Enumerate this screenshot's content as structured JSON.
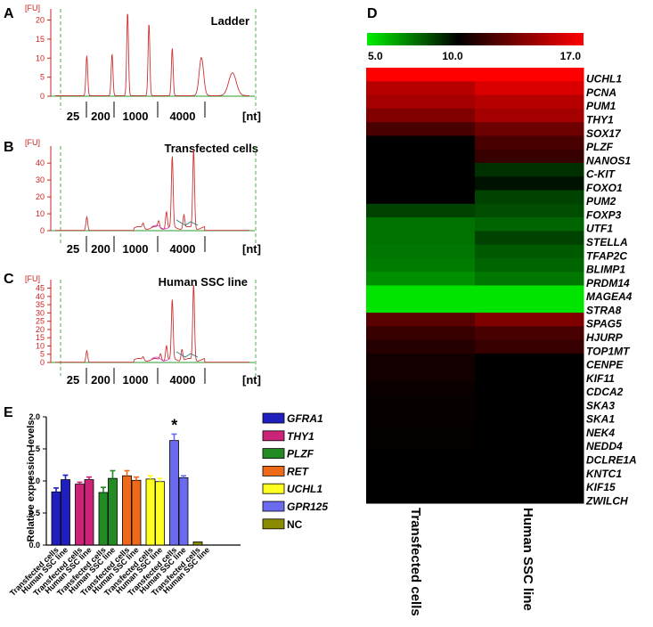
{
  "panels": {
    "a_letter": "A",
    "b_letter": "B",
    "c_letter": "C",
    "d_letter": "D",
    "e_letter": "E"
  },
  "chart_data": [
    {
      "type": "line",
      "panel": "A",
      "title": "Ladder",
      "unit_y": "[FU]",
      "unit_x": "[nt]",
      "y_ticks": [
        "0",
        "5",
        "10",
        "15",
        "20"
      ],
      "ylim": [
        0,
        22
      ],
      "x_tick_labels": [
        "25",
        "200",
        "1000",
        "4000"
      ],
      "peaks": [
        {
          "x": 0.08,
          "height": 10.5
        },
        {
          "x": 0.21,
          "height": 11.0
        },
        {
          "x": 0.29,
          "height": 22.0
        },
        {
          "x": 0.4,
          "height": 19.0
        },
        {
          "x": 0.52,
          "height": 12.5
        },
        {
          "x": 0.67,
          "height": 10.0
        },
        {
          "x": 0.83,
          "height": 6.0
        }
      ],
      "color": "#cc3333"
    },
    {
      "type": "line",
      "panel": "B",
      "title": "Transfected cells",
      "unit_y": "[FU]",
      "unit_x": "[nt]",
      "y_ticks": [
        "0",
        "10",
        "20",
        "30",
        "40"
      ],
      "ylim": [
        0,
        48
      ],
      "x_tick_labels": [
        "25",
        "200",
        "1000",
        "4000"
      ],
      "peaks": [
        {
          "x": 0.08,
          "height": 8.0
        },
        {
          "x": 0.37,
          "height": 3.0
        },
        {
          "x": 0.45,
          "height": 4.0
        },
        {
          "x": 0.49,
          "height": 10.0
        },
        {
          "x": 0.52,
          "height": 42.0
        },
        {
          "x": 0.58,
          "height": 8.0
        },
        {
          "x": 0.63,
          "height": 47.0
        }
      ],
      "color": "#cc3333"
    },
    {
      "type": "line",
      "panel": "C",
      "title": "Human SSC line",
      "unit_y": "[FU]",
      "unit_x": "[nt]",
      "y_ticks": [
        "0",
        "5",
        "10",
        "15",
        "20",
        "25",
        "30",
        "35",
        "40",
        "45"
      ],
      "ylim": [
        0,
        48
      ],
      "x_tick_labels": [
        "25",
        "200",
        "1000",
        "4000"
      ],
      "peaks": [
        {
          "x": 0.08,
          "height": 7.0
        },
        {
          "x": 0.37,
          "height": 2.0
        },
        {
          "x": 0.46,
          "height": 4.0
        },
        {
          "x": 0.49,
          "height": 9.0
        },
        {
          "x": 0.52,
          "height": 36.0
        },
        {
          "x": 0.57,
          "height": 7.0
        },
        {
          "x": 0.63,
          "height": 46.0
        }
      ],
      "color": "#cc3333"
    },
    {
      "type": "heatmap",
      "panel": "D",
      "colorbar": {
        "min_label": "5.0",
        "mid_label": "10.0",
        "max_label": "17.0",
        "min": 5.0,
        "mid": 10.0,
        "max": 17.0,
        "low_color": "#00ee00",
        "mid_color": "#000000",
        "high_color": "#ff0000"
      },
      "columns": [
        "Transfected cells",
        "Human SSC line"
      ],
      "rows": [
        "UCHL1",
        "PCNA",
        "PUM1",
        "THY1",
        "SOX17",
        "PLZF",
        "NANOS1",
        "C-KIT",
        "FOXO1",
        "PUM2",
        "FOXP3",
        "UTF1",
        "STELLA",
        "TFAP2C",
        "BLIMP1",
        "PRDM14",
        "MAGEA4",
        "STRA8",
        "SPAG5",
        "HJURP",
        "TOP1MT",
        "CENPE",
        "KIF11",
        "CDCA2",
        "SKA3",
        "SKA1",
        "NEK4",
        "NEDD4",
        "DCLRE1A",
        "KNTC1",
        "KIF15",
        "ZWILCH"
      ],
      "values": [
        [
          17.0,
          17.0
        ],
        [
          15.0,
          16.0
        ],
        [
          14.5,
          15.0
        ],
        [
          13.5,
          14.5
        ],
        [
          12.0,
          13.0
        ],
        [
          10.0,
          12.0
        ],
        [
          10.0,
          11.5
        ],
        [
          10.0,
          9.0
        ],
        [
          10.0,
          9.6
        ],
        [
          10.0,
          8.6
        ],
        [
          8.6,
          8.4
        ],
        [
          7.6,
          7.9
        ],
        [
          7.6,
          8.6
        ],
        [
          7.5,
          8.1
        ],
        [
          7.4,
          7.9
        ],
        [
          7.0,
          7.5
        ],
        [
          5.2,
          5.2
        ],
        [
          5.2,
          5.2
        ],
        [
          12.5,
          13.5
        ],
        [
          11.5,
          12.0
        ],
        [
          11.0,
          11.5
        ],
        [
          10.5,
          10.0
        ],
        [
          10.5,
          10.0
        ],
        [
          10.3,
          10.0
        ],
        [
          10.2,
          10.0
        ],
        [
          10.2,
          10.0
        ],
        [
          10.1,
          10.0
        ],
        [
          10.1,
          10.0
        ],
        [
          10.0,
          10.0
        ],
        [
          10.0,
          10.0
        ],
        [
          10.0,
          10.0
        ],
        [
          10.0,
          10.0
        ]
      ]
    },
    {
      "type": "bar",
      "panel": "E",
      "ylabel": "Relative expression levels",
      "ylim": [
        0,
        2.0
      ],
      "y_ticks": [
        "0.0",
        "0.5",
        "1.0",
        "1.5",
        "2.0"
      ],
      "group_labels": [
        "Transfected cells",
        "Human SSC line"
      ],
      "series": [
        {
          "name": "GFRA1",
          "color": "#1f1fbf",
          "values": [
            0.83,
            1.02
          ],
          "errors": [
            0.06,
            0.07
          ]
        },
        {
          "name": "THY1",
          "color": "#cc2277",
          "values": [
            0.95,
            1.02
          ],
          "errors": [
            0.03,
            0.04
          ]
        },
        {
          "name": "PLZF",
          "color": "#228b22",
          "values": [
            0.82,
            1.04
          ],
          "errors": [
            0.08,
            0.12
          ]
        },
        {
          "name": "RET",
          "color": "#ee6a1a",
          "values": [
            1.08,
            1.01
          ],
          "errors": [
            0.08,
            0.05
          ]
        },
        {
          "name": "UCHL1",
          "color": "#ffff22",
          "values": [
            1.03,
            0.99
          ],
          "errors": [
            0.05,
            0.05
          ]
        },
        {
          "name": "GPR125",
          "color": "#6a6aee",
          "values": [
            1.63,
            1.05
          ],
          "errors": [
            0.1,
            0.03
          ]
        },
        {
          "name": "NC",
          "color": "#8b8b00",
          "values": [
            0.05,
            0.0
          ],
          "errors": [
            0.0,
            0.0
          ]
        }
      ],
      "annotation": "*",
      "legend": "right"
    }
  ]
}
